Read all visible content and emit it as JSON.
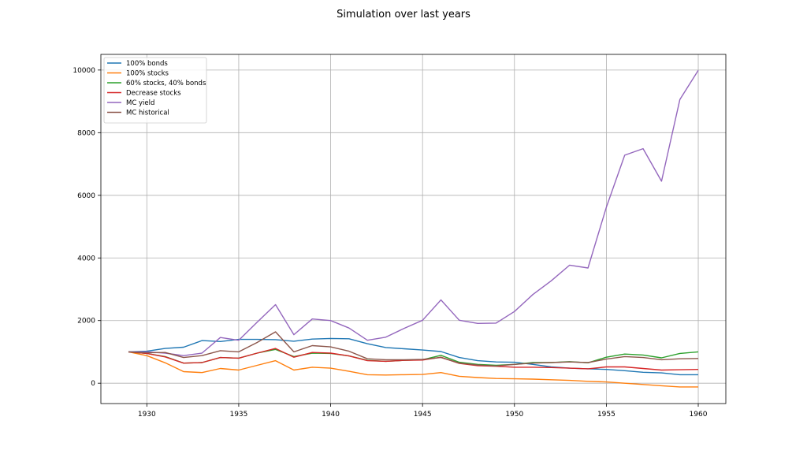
{
  "chart_data": {
    "type": "line",
    "title": "Simulation over last years",
    "xlabel": "",
    "ylabel": "",
    "xlim": [
      1927.5,
      1961.5
    ],
    "ylim": [
      -650,
      10500
    ],
    "x_ticks": [
      1930,
      1935,
      1940,
      1945,
      1950,
      1955,
      1960
    ],
    "y_ticks": [
      0,
      2000,
      4000,
      6000,
      8000,
      10000
    ],
    "grid": true,
    "legend_position": "upper-left",
    "x": [
      1929,
      1930,
      1931,
      1932,
      1933,
      1934,
      1935,
      1936,
      1937,
      1938,
      1939,
      1940,
      1941,
      1942,
      1943,
      1944,
      1945,
      1946,
      1947,
      1948,
      1949,
      1950,
      1951,
      1952,
      1953,
      1954,
      1955,
      1956,
      1957,
      1958,
      1959,
      1960
    ],
    "series": [
      {
        "name": "100% bonds",
        "color": "#1f77b4",
        "values": [
          1000,
          1020,
          1110,
          1150,
          1360,
          1330,
          1400,
          1400,
          1390,
          1340,
          1410,
          1430,
          1420,
          1260,
          1140,
          1100,
          1060,
          1010,
          820,
          720,
          680,
          670,
          600,
          520,
          480,
          460,
          440,
          400,
          350,
          330,
          270,
          270
        ]
      },
      {
        "name": "100% stocks",
        "color": "#ff7f0e",
        "values": [
          1000,
          880,
          650,
          370,
          340,
          470,
          420,
          570,
          720,
          420,
          510,
          480,
          380,
          270,
          260,
          270,
          280,
          340,
          220,
          180,
          150,
          140,
          130,
          110,
          90,
          60,
          40,
          0,
          -40,
          -80,
          -120,
          -120
        ]
      },
      {
        "name": "60% stocks, 40% bonds",
        "color": "#2ca02c",
        "values": [
          1000,
          950,
          850,
          640,
          660,
          820,
          800,
          960,
          1080,
          850,
          960,
          950,
          870,
          730,
          700,
          730,
          750,
          890,
          670,
          600,
          570,
          600,
          660,
          660,
          690,
          650,
          830,
          930,
          900,
          810,
          950,
          1000
        ]
      },
      {
        "name": "Decrease stocks",
        "color": "#d62728",
        "values": [
          1000,
          950,
          840,
          640,
          660,
          820,
          800,
          960,
          1110,
          830,
          980,
          960,
          870,
          720,
          700,
          730,
          740,
          830,
          630,
          560,
          540,
          510,
          510,
          500,
          480,
          460,
          520,
          520,
          470,
          420,
          430,
          440
        ]
      },
      {
        "name": "MC yield",
        "color": "#9467bd",
        "values": [
          1000,
          1000,
          960,
          880,
          960,
          1460,
          1370,
          1950,
          2510,
          1550,
          2050,
          2000,
          1760,
          1370,
          1470,
          1750,
          2010,
          2660,
          2010,
          1910,
          1920,
          2290,
          2830,
          3270,
          3770,
          3680,
          5620,
          7280,
          7490,
          6450,
          9060,
          9990
        ]
      },
      {
        "name": "MC historical",
        "color": "#8c564b",
        "values": [
          1000,
          970,
          980,
          820,
          880,
          1040,
          1000,
          1300,
          1640,
          1000,
          1200,
          1160,
          1020,
          780,
          750,
          750,
          760,
          820,
          640,
          580,
          550,
          600,
          640,
          660,
          680,
          660,
          770,
          850,
          820,
          750,
          780,
          790
        ]
      }
    ]
  }
}
